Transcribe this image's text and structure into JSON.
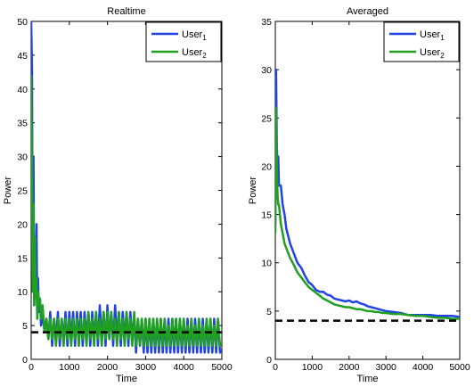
{
  "chart_data": [
    {
      "type": "line",
      "title": "Realtime",
      "xlabel": "Time",
      "ylabel": "Power",
      "xlim": [
        0,
        5000
      ],
      "ylim": [
        0,
        50
      ],
      "xticks": [
        0,
        1000,
        2000,
        3000,
        4000,
        5000
      ],
      "yticks": [
        0,
        5,
        10,
        15,
        20,
        25,
        30,
        35,
        40,
        45,
        50
      ],
      "grid": false,
      "legend_position": "top-right",
      "reference_line": {
        "y": 4,
        "style": "dashed",
        "color": "#000000"
      },
      "series": [
        {
          "name": "User",
          "subscript": "1",
          "color": "#2142e6",
          "x": [
            0,
            20,
            40,
            60,
            80,
            100,
            120,
            140,
            160,
            180,
            200,
            230,
            260,
            300,
            350,
            400,
            450,
            500,
            550,
            600,
            650,
            700,
            750,
            800,
            850,
            900,
            950,
            1000,
            1050,
            1100,
            1150,
            1200,
            1250,
            1300,
            1350,
            1400,
            1450,
            1500,
            1550,
            1600,
            1650,
            1700,
            1750,
            1800,
            1850,
            1900,
            1950,
            2000,
            2050,
            2100,
            2150,
            2200,
            2250,
            2300,
            2350,
            2400,
            2450,
            2500,
            2550,
            2600,
            2650,
            2700,
            2750,
            2800,
            2850,
            2900,
            2950,
            3000,
            3050,
            3100,
            3150,
            3200,
            3250,
            3300,
            3350,
            3400,
            3450,
            3500,
            3550,
            3600,
            3650,
            3700,
            3750,
            3800,
            3850,
            3900,
            3950,
            4000,
            4050,
            4100,
            4150,
            4200,
            4250,
            4300,
            4350,
            4400,
            4450,
            4500,
            4550,
            4600,
            4650,
            4700,
            4750,
            4800,
            4850,
            4900,
            4950,
            5000
          ],
          "y": [
            50,
            43,
            12,
            30,
            8,
            15,
            10,
            20,
            6,
            12,
            7,
            9,
            5,
            7,
            4,
            6,
            3,
            7,
            2,
            6,
            3,
            7,
            2,
            6,
            3,
            7,
            2,
            7,
            3,
            7,
            2,
            7,
            3,
            7,
            2,
            7,
            3,
            7,
            2,
            7,
            3,
            7,
            2,
            8,
            3,
            7,
            2,
            8,
            3,
            7,
            2,
            8,
            3,
            7,
            2,
            7,
            3,
            7,
            2,
            7,
            3,
            6,
            1,
            6,
            2,
            6,
            1,
            6,
            1,
            6,
            1,
            6,
            1,
            6,
            1,
            6,
            1,
            6,
            1,
            6,
            1,
            6,
            1,
            6,
            1,
            6,
            1,
            6,
            1,
            6,
            1,
            6,
            1,
            6,
            1,
            6,
            1,
            6,
            1,
            6,
            1,
            6,
            1,
            6,
            1,
            6,
            1,
            1.5
          ]
        },
        {
          "name": "User",
          "subscript": "2",
          "color": "#20a020",
          "x": [
            0,
            20,
            40,
            60,
            80,
            100,
            120,
            140,
            160,
            180,
            200,
            230,
            260,
            300,
            350,
            400,
            450,
            500,
            550,
            600,
            650,
            700,
            750,
            800,
            850,
            900,
            950,
            1000,
            1050,
            1100,
            1150,
            1200,
            1250,
            1300,
            1350,
            1400,
            1450,
            1500,
            1550,
            1600,
            1650,
            1700,
            1750,
            1800,
            1850,
            1900,
            1950,
            2000,
            2050,
            2100,
            2150,
            2200,
            2250,
            2300,
            2350,
            2400,
            2450,
            2500,
            2550,
            2600,
            2650,
            2700,
            2750,
            2800,
            2850,
            2900,
            2950,
            3000,
            3050,
            3100,
            3150,
            3200,
            3250,
            3300,
            3350,
            3400,
            3450,
            3500,
            3550,
            3600,
            3650,
            3700,
            3750,
            3800,
            3850,
            3900,
            3950,
            4000,
            4050,
            4100,
            4150,
            4200,
            4250,
            4300,
            4350,
            4400,
            4450,
            4500,
            4550,
            4600,
            4650,
            4700,
            4750,
            4800,
            4850,
            4900,
            4950,
            5000
          ],
          "y": [
            42,
            30,
            10,
            23,
            8,
            18,
            9,
            12,
            6,
            10,
            8,
            9,
            6,
            8,
            4,
            6,
            3,
            6,
            3,
            6,
            2,
            6,
            3,
            6,
            2,
            6,
            3,
            6,
            2,
            6,
            3,
            6,
            2,
            6,
            3,
            6,
            2,
            7,
            3,
            6,
            2,
            7,
            3,
            6,
            2,
            7,
            3,
            7,
            3,
            7,
            3,
            6,
            2,
            7,
            3,
            6,
            2,
            7,
            3,
            6,
            2,
            7,
            2,
            6,
            2,
            6,
            2,
            6,
            2,
            6,
            2,
            6,
            2,
            6,
            2,
            6,
            2,
            6,
            2,
            5,
            2,
            6,
            2,
            6,
            2,
            6,
            2,
            6,
            2,
            5,
            2,
            6,
            2,
            5,
            2,
            6,
            2,
            5,
            2,
            6,
            2,
            6,
            2,
            5,
            2,
            6,
            2,
            2.5
          ]
        }
      ]
    },
    {
      "type": "line",
      "title": "Averaged",
      "xlabel": "Time",
      "ylabel": "Power",
      "xlim": [
        0,
        5000
      ],
      "ylim": [
        0,
        35
      ],
      "xticks": [
        0,
        1000,
        2000,
        3000,
        4000,
        5000
      ],
      "yticks": [
        0,
        5,
        10,
        15,
        20,
        25,
        30,
        35
      ],
      "grid": false,
      "legend_position": "top-right",
      "reference_line": {
        "y": 4,
        "style": "dashed",
        "color": "#000000"
      },
      "series": [
        {
          "name": "User",
          "subscript": "1",
          "color": "#2142e6",
          "x": [
            0,
            20,
            40,
            60,
            80,
            100,
            150,
            200,
            250,
            300,
            400,
            500,
            600,
            700,
            800,
            900,
            1000,
            1100,
            1200,
            1300,
            1400,
            1500,
            1600,
            1700,
            1800,
            1900,
            2000,
            2100,
            2200,
            2300,
            2400,
            2500,
            2600,
            2700,
            2800,
            2900,
            3000,
            3200,
            3400,
            3600,
            3800,
            4000,
            4200,
            4400,
            4600,
            4800,
            5000
          ],
          "y": [
            14,
            30,
            22,
            20,
            21,
            18,
            18,
            16,
            15,
            13.5,
            12,
            11,
            10,
            9.5,
            8.7,
            8,
            7.7,
            7.2,
            7,
            7,
            6.7,
            6.6,
            6.3,
            6.2,
            6.1,
            6.0,
            6.1,
            5.9,
            6.0,
            5.8,
            5.7,
            5.5,
            5.4,
            5.3,
            5.2,
            5.1,
            5.0,
            4.9,
            4.8,
            4.6,
            4.6,
            4.6,
            4.6,
            4.5,
            4.5,
            4.5,
            4.4
          ]
        },
        {
          "name": "User",
          "subscript": "2",
          "color": "#20a020",
          "x": [
            0,
            20,
            40,
            60,
            80,
            100,
            150,
            200,
            250,
            300,
            400,
            500,
            600,
            700,
            800,
            900,
            1000,
            1100,
            1200,
            1300,
            1400,
            1500,
            1600,
            1700,
            1800,
            1900,
            2000,
            2100,
            2200,
            2300,
            2400,
            2500,
            2600,
            2700,
            2800,
            2900,
            3000,
            3200,
            3400,
            3600,
            3800,
            4000,
            4200,
            4400,
            4600,
            4800,
            5000
          ],
          "y": [
            13,
            26,
            20,
            17,
            16,
            16,
            14,
            13,
            12,
            11.5,
            10.5,
            9.8,
            9,
            8.5,
            8,
            7.5,
            7.2,
            6.9,
            6.6,
            6.3,
            6.1,
            5.9,
            5.7,
            5.6,
            5.5,
            5.4,
            5.4,
            5.3,
            5.2,
            5.2,
            5.1,
            5.0,
            5.0,
            4.9,
            4.9,
            4.8,
            4.8,
            4.7,
            4.7,
            4.6,
            4.5,
            4.5,
            4.4,
            4.3,
            4.3,
            4.2,
            4.2
          ]
        }
      ]
    }
  ]
}
